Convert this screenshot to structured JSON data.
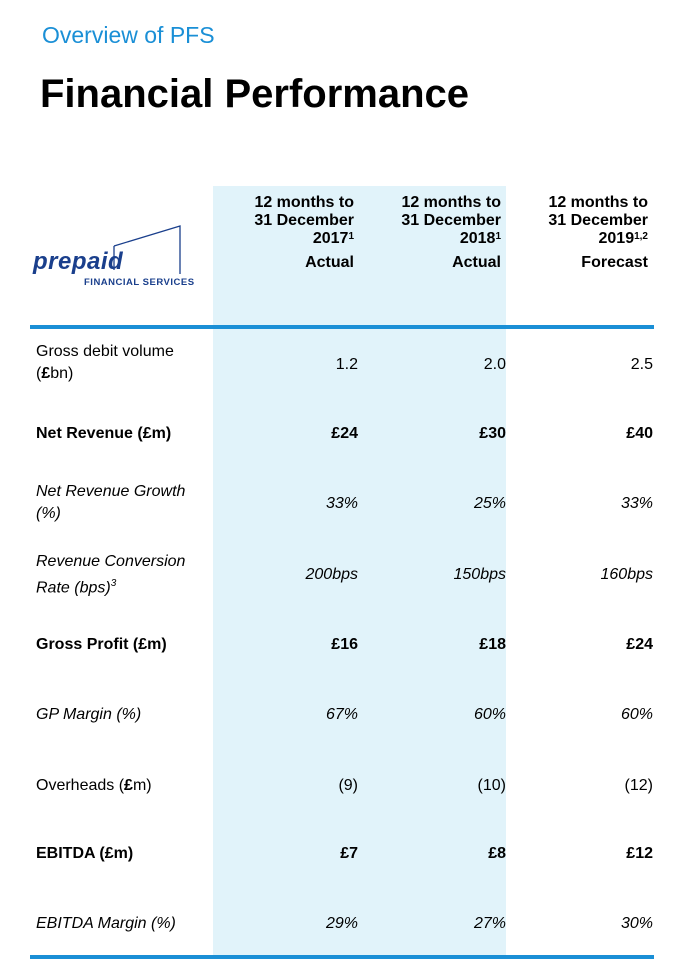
{
  "header": {
    "subtitle": "Overview of PFS",
    "title": "Financial Performance"
  },
  "logo": {
    "word_main": "prepaid",
    "word_sub": "FINANCIAL SERVICES"
  },
  "columns": [
    {
      "line1": "12 months to",
      "line2": "31 December",
      "year": "2017",
      "sup": "1",
      "status": "Actual"
    },
    {
      "line1": "12 months to",
      "line2": "31 December",
      "year": "2018",
      "sup": "1",
      "status": "Actual"
    },
    {
      "line1": "12 months to",
      "line2": "31 December",
      "year": "2019",
      "sup": "1,2",
      "status": "Forecast"
    }
  ],
  "rows": [
    {
      "label_a": "Gross debit volume",
      "label_b": "(",
      "label_b_bold": "£",
      "label_b_end": "bn)",
      "values": [
        "1.2",
        "2.0",
        "2.5"
      ]
    },
    {
      "label": "Net Revenue (£m)",
      "values": [
        "£24",
        "£30",
        "£40"
      ]
    },
    {
      "label_a": "Net Revenue Growth",
      "label_b": "(%)",
      "values": [
        "33%",
        "25%",
        "33%"
      ]
    },
    {
      "label_a": "Revenue Conversion",
      "label_b": "Rate (bps)",
      "sup": "3",
      "values": [
        "200bps",
        "150bps",
        "160bps"
      ]
    },
    {
      "label": "Gross Profit (£m)",
      "values": [
        "£16",
        "£18",
        "£24"
      ]
    },
    {
      "label": "GP Margin (%)",
      "values": [
        "67%",
        "60%",
        "60%"
      ]
    },
    {
      "label_a": "Overheads (",
      "label_bold": "£",
      "label_end": "m)",
      "values": [
        "(9)",
        "(10)",
        "(12)"
      ]
    },
    {
      "label": "EBITDA (£m)",
      "values": [
        "£7",
        "£8",
        "£12"
      ]
    },
    {
      "label": "EBITDA Margin (%)",
      "values": [
        "29%",
        "27%",
        "30%"
      ]
    }
  ]
}
